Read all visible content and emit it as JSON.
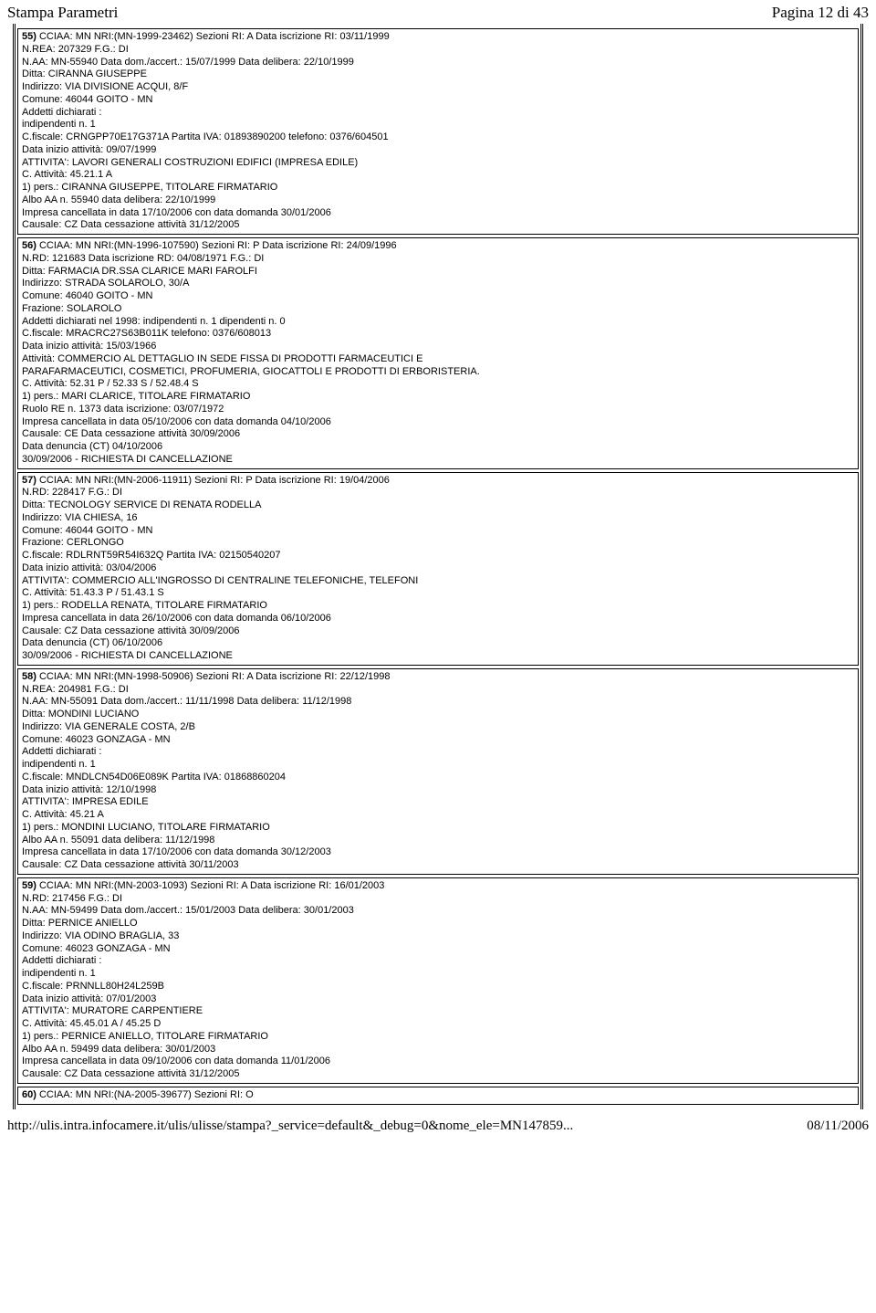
{
  "header": {
    "left": "Stampa Parametri",
    "right": "Pagina 12 di 43"
  },
  "records": [
    {
      "lines": [
        "<b>55)</b> CCIAA: MN NRI:(MN-1999-23462) Sezioni RI: A Data iscrizione RI: 03/11/1999",
        "N.REA: 207329 F.G.: DI",
        "N.AA: MN-55940 Data dom./accert.: 15/07/1999 Data delibera: 22/10/1999",
        "Ditta: CIRANNA GIUSEPPE",
        "Indirizzo: VIA DIVISIONE ACQUI, 8/F",
        "Comune: 46044 GOITO - MN",
        "Addetti dichiarati :",
        "indipendenti n. 1",
        "C.fiscale: CRNGPP70E17G371A Partita IVA: 01893890200 telefono: 0376/604501",
        "Data inizio attività: 09/07/1999",
        "ATTIVITA': LAVORI GENERALI COSTRUZIONI EDIFICI (IMPRESA EDILE)",
        "C. Attività: 45.21.1 A",
        "1) pers.: CIRANNA GIUSEPPE, TITOLARE FIRMATARIO",
        "Albo AA n. 55940 data delibera: 22/10/1999",
        "Impresa cancellata in data 17/10/2006 con data domanda 30/01/2006",
        "Causale: CZ Data cessazione attività 31/12/2005"
      ]
    },
    {
      "lines": [
        "<b>56)</b> CCIAA: MN NRI:(MN-1996-107590) Sezioni RI: P Data iscrizione RI: 24/09/1996",
        "N.RD: 121683 Data iscrizione RD: 04/08/1971 F.G.: DI",
        "Ditta: FARMACIA DR.SSA CLARICE MARI FAROLFI",
        "Indirizzo: STRADA SOLAROLO, 30/A",
        "Comune: 46040 GOITO - MN",
        "Frazione: SOLAROLO",
        "Addetti dichiarati nel 1998: indipendenti n. 1 dipendenti n. 0",
        "C.fiscale: MRACRC27S63B011K telefono: 0376/608013",
        "Data inizio attività: 15/03/1966",
        "Attività: COMMERCIO AL DETTAGLIO IN SEDE FISSA DI PRODOTTI FARMACEUTICI E",
        "PARAFARMACEUTICI, COSMETICI, PROFUMERIA, GIOCATTOLI E PRODOTTI DI ERBORISTERIA.",
        "C. Attività: 52.31 P / 52.33 S / 52.48.4 S",
        "1) pers.: MARI CLARICE, TITOLARE FIRMATARIO",
        "Ruolo RE n. 1373 data iscrizione: 03/07/1972",
        "Impresa cancellata in data 05/10/2006 con data domanda 04/10/2006",
        "Causale: CE Data cessazione attività 30/09/2006",
        "Data denuncia (CT) 04/10/2006",
        "30/09/2006 - RICHIESTA DI CANCELLAZIONE"
      ]
    },
    {
      "lines": [
        "<b>57)</b> CCIAA: MN NRI:(MN-2006-11911) Sezioni RI: P Data iscrizione RI: 19/04/2006",
        "N.RD: 228417 F.G.: DI",
        "Ditta: TECNOLOGY SERVICE DI RENATA RODELLA",
        "Indirizzo: VIA CHIESA, 16",
        "Comune: 46044 GOITO - MN",
        "Frazione: CERLONGO",
        "C.fiscale: RDLRNT59R54I632Q Partita IVA: 02150540207",
        "Data inizio attività: 03/04/2006",
        "ATTIVITA': COMMERCIO ALL'INGROSSO DI CENTRALINE TELEFONICHE, TELEFONI",
        "C. Attività: 51.43.3 P / 51.43.1 S",
        "1) pers.: RODELLA RENATA, TITOLARE FIRMATARIO",
        "Impresa cancellata in data 26/10/2006 con data domanda 06/10/2006",
        "Causale: CZ Data cessazione attività 30/09/2006",
        "Data denuncia (CT) 06/10/2006",
        "30/09/2006 - RICHIESTA DI CANCELLAZIONE"
      ]
    },
    {
      "lines": [
        "<b>58)</b> CCIAA: MN NRI:(MN-1998-50906) Sezioni RI: A Data iscrizione RI: 22/12/1998",
        "N.REA: 204981 F.G.: DI",
        "N.AA: MN-55091 Data dom./accert.: 11/11/1998 Data delibera: 11/12/1998",
        "Ditta: MONDINI LUCIANO",
        "Indirizzo: VIA GENERALE COSTA, 2/B",
        "Comune: 46023 GONZAGA - MN",
        "Addetti dichiarati :",
        "indipendenti n. 1",
        "C.fiscale: MNDLCN54D06E089K Partita IVA: 01868860204",
        "Data inizio attività: 12/10/1998",
        "ATTIVITA': IMPRESA EDILE",
        "C. Attività: 45.21 A",
        "1) pers.: MONDINI LUCIANO, TITOLARE FIRMATARIO",
        "Albo AA n. 55091 data delibera: 11/12/1998",
        "Impresa cancellata in data 17/10/2006 con data domanda 30/12/2003",
        "Causale: CZ Data cessazione attività 30/11/2003"
      ]
    },
    {
      "lines": [
        "<b>59)</b> CCIAA: MN NRI:(MN-2003-1093) Sezioni RI: A Data iscrizione RI: 16/01/2003",
        "N.RD: 217456 F.G.: DI",
        "N.AA: MN-59499 Data dom./accert.: 15/01/2003 Data delibera: 30/01/2003",
        "Ditta: PERNICE ANIELLO",
        "Indirizzo: VIA ODINO BRAGLIA, 33",
        "Comune: 46023 GONZAGA - MN",
        "Addetti dichiarati :",
        "indipendenti n. 1",
        "C.fiscale: PRNNLL80H24L259B",
        "Data inizio attività: 07/01/2003",
        "ATTIVITA': MURATORE CARPENTIERE",
        "C. Attività: 45.45.01 A / 45.25 D",
        "1) pers.: PERNICE ANIELLO, TITOLARE FIRMATARIO",
        "Albo AA n. 59499 data delibera: 30/01/2003",
        "Impresa cancellata in data 09/10/2006 con data domanda 11/01/2006",
        "Causale: CZ Data cessazione attività 31/12/2005"
      ]
    },
    {
      "lines": [
        "<b>60)</b> CCIAA: MN NRI:(NA-2005-39677) Sezioni RI: O"
      ]
    }
  ],
  "footer": {
    "url": "http://ulis.intra.infocamere.it/ulis/ulisse/stampa?_service=default&_debug=0&nome_ele=MN147859...",
    "date": "08/11/2006"
  }
}
